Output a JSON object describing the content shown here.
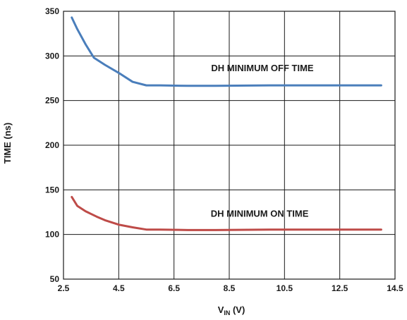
{
  "chart_data": {
    "type": "line",
    "title": "",
    "xlabel_main": "V",
    "xlabel_sub": "IN",
    "xlabel_unit": " (V)",
    "ylabel": "TIME (ns)",
    "xlim": [
      2.5,
      14.5
    ],
    "ylim": [
      50,
      350
    ],
    "xticks": [
      2.5,
      4.5,
      6.5,
      8.5,
      10.5,
      12.5,
      14.5
    ],
    "xtick_labels": [
      "2.5",
      "4.5",
      "6.5",
      "8.5",
      "10.5",
      "12.5",
      "14.5"
    ],
    "yticks": [
      50,
      100,
      150,
      200,
      250,
      300,
      350
    ],
    "ytick_labels": [
      "50",
      "100",
      "150",
      "200",
      "250",
      "300",
      "350"
    ],
    "grid": true,
    "series": [
      {
        "name": "DH MINIMUM OFF TIME",
        "color": "#4a7ebb",
        "x": [
          2.8,
          3.0,
          3.3,
          3.6,
          4.0,
          4.5,
          5.0,
          5.5,
          6.0,
          7.0,
          8.0,
          10.0,
          12.0,
          14.0
        ],
        "y": [
          343,
          330,
          313,
          298,
          290,
          281,
          271,
          267,
          267,
          266.5,
          266.5,
          267,
          267,
          267
        ]
      },
      {
        "name": "DH MINIMUM ON TIME",
        "color": "#be4b48",
        "x": [
          2.8,
          3.0,
          3.3,
          3.7,
          4.0,
          4.5,
          5.0,
          5.5,
          6.0,
          7.0,
          8.0,
          10.0,
          12.0,
          14.0
        ],
        "y": [
          142,
          132,
          126,
          120,
          116,
          111,
          108,
          105.5,
          105.5,
          105,
          105,
          105.5,
          105.5,
          105.5
        ]
      }
    ],
    "annotations": [
      {
        "text": "DH MINIMUM OFF TIME",
        "x": 9.7,
        "y": 283
      },
      {
        "text": "DH MINIMUM ON TIME",
        "x": 9.6,
        "y": 120
      }
    ]
  }
}
